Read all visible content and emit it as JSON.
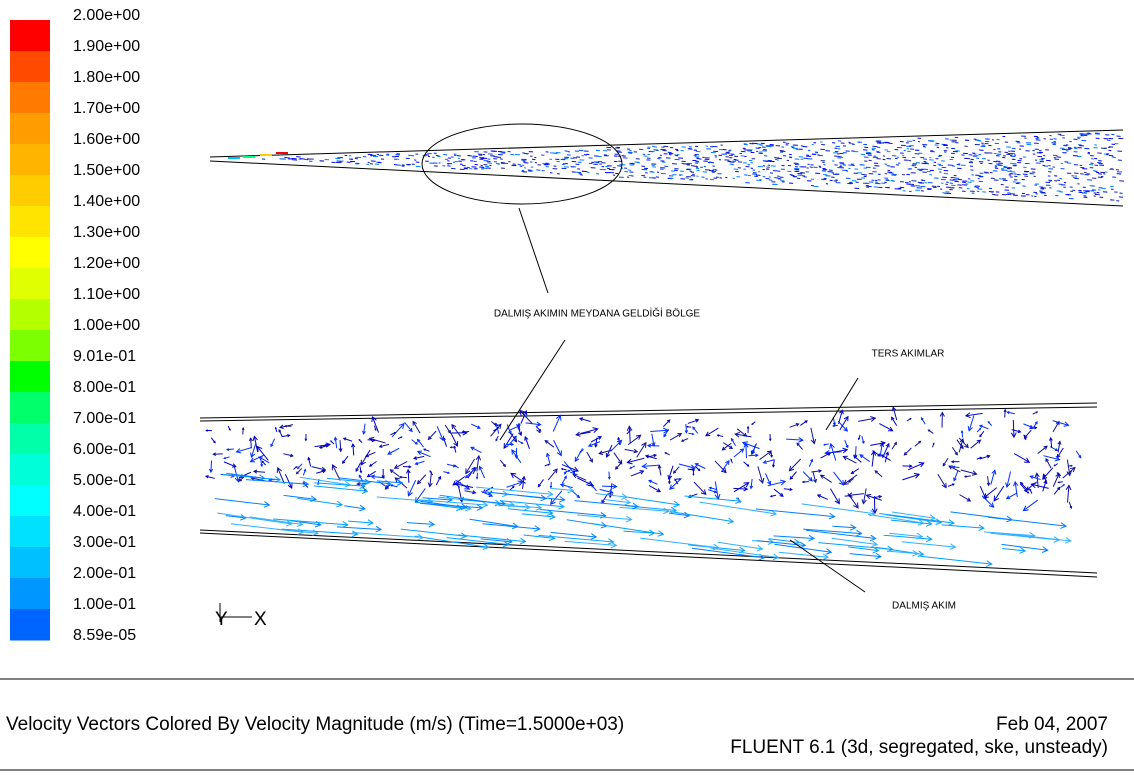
{
  "legend": {
    "labels": [
      "2.00e+00",
      "1.90e+00",
      "1.80e+00",
      "1.70e+00",
      "1.60e+00",
      "1.50e+00",
      "1.40e+00",
      "1.30e+00",
      "1.20e+00",
      "1.10e+00",
      "1.00e+00",
      "9.01e-01",
      "8.00e-01",
      "7.00e-01",
      "6.00e-01",
      "5.00e-01",
      "4.00e-01",
      "3.00e-01",
      "2.00e-01",
      "1.00e-01",
      "8.59e-05"
    ],
    "colors": [
      "#ff0000",
      "#ff4a00",
      "#ff7a00",
      "#ff9c00",
      "#ffb400",
      "#ffcc00",
      "#ffe400",
      "#ffff00",
      "#e0ff00",
      "#b4ff00",
      "#7cff00",
      "#00ff00",
      "#00ff6a",
      "#00ffa8",
      "#00ffd8",
      "#00ffff",
      "#00e0ff",
      "#00c0ff",
      "#0096ff",
      "#0064ff",
      "#0000ff"
    ]
  },
  "axes": {
    "y": "Y",
    "x": "X"
  },
  "annotations": [
    "DALMIŞ AKIMIN MEYDANA GELDİĞİ BÖLGE",
    "TERS AKIMLAR",
    "DALMIŞ AKIM"
  ],
  "caption": {
    "title": "Velocity Vectors Colored By Velocity Magnitude (m/s)  (Time=1.5000e+03)",
    "date": "Feb 04, 2007",
    "software": "FLUENT 6.1 (3d, segregated, ske, unsteady)"
  }
}
